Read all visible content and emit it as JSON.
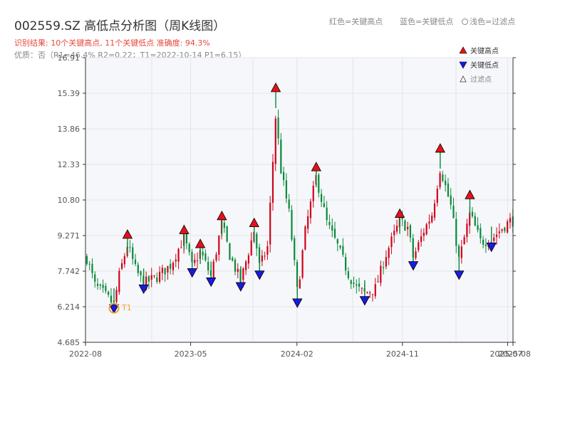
{
  "header": {
    "title": "002559.SZ 高低点分析图（周K线图）",
    "result_line": "识别结果: 10个关键高点, 11个关键低点  准确度: 94.3%",
    "quality_line": "优质：否（R1=46.4%  R2=0.22；T1=2022-10-14 P1=6.15）",
    "legend_high": "红色=关键高点",
    "legend_low": "蓝色=关键低点",
    "legend_filtered": "浅色=过滤点"
  },
  "colors": {
    "up": "#d0021b",
    "down": "#0a8a3a",
    "high_marker": "#e8111b",
    "low_marker": "#1a1ae0",
    "t1_marker": "#f2a12a",
    "plot_bg": "#f5f7fa",
    "grid": "#e2e6ea"
  },
  "chart_data": {
    "type": "candlestick",
    "title": "002559.SZ 高低点分析图（周K线图）",
    "ylim": [
      4.685,
      16.91
    ],
    "y_ticks": [
      "4.685",
      "6.214",
      "7.742",
      "9.271",
      "10.80",
      "12.33",
      "13.86",
      "15.39",
      "16.91"
    ],
    "x_ticks": [
      "2022-08",
      "2023-05",
      "2024-02",
      "2024-11",
      "2025-07",
      "2025-08"
    ],
    "x_range": [
      "2022-08-01",
      "2025-08-15"
    ],
    "grid": true,
    "legend_position": "top-right",
    "legend": {
      "high": "关键高点",
      "low": "关键低点",
      "filtered": "过滤点"
    },
    "key_highs": [
      {
        "date": "2022-11-18",
        "price": 9.3
      },
      {
        "date": "2023-04-14",
        "price": 9.5
      },
      {
        "date": "2023-05-26",
        "price": 8.9
      },
      {
        "date": "2023-07-21",
        "price": 10.1
      },
      {
        "date": "2023-10-13",
        "price": 9.8
      },
      {
        "date": "2023-12-08",
        "price": 15.6
      },
      {
        "date": "2024-03-22",
        "price": 12.2
      },
      {
        "date": "2024-10-25",
        "price": 10.2
      },
      {
        "date": "2025-02-07",
        "price": 13.0
      },
      {
        "date": "2025-04-25",
        "price": 11.0
      }
    ],
    "key_lows": [
      {
        "date": "2022-10-14",
        "price": 6.15
      },
      {
        "date": "2022-12-30",
        "price": 7.0
      },
      {
        "date": "2023-05-05",
        "price": 7.7
      },
      {
        "date": "2023-06-23",
        "price": 7.3
      },
      {
        "date": "2023-09-08",
        "price": 7.1
      },
      {
        "date": "2023-10-27",
        "price": 7.6
      },
      {
        "date": "2024-02-02",
        "price": 6.4
      },
      {
        "date": "2024-07-26",
        "price": 6.5
      },
      {
        "date": "2024-11-29",
        "price": 8.0
      },
      {
        "date": "2025-03-28",
        "price": 7.6
      },
      {
        "date": "2025-06-20",
        "price": 8.8
      }
    ],
    "t1": {
      "label": "T1",
      "date": "2022-10-14",
      "price": 6.15
    },
    "price_path": [
      [
        "2022-08-05",
        8.3
      ],
      [
        "2022-08-26",
        7.1
      ],
      [
        "2022-09-16",
        6.8
      ],
      [
        "2022-10-14",
        6.3
      ],
      [
        "2022-10-28",
        7.6
      ],
      [
        "2022-11-18",
        8.9
      ],
      [
        "2022-12-09",
        7.8
      ],
      [
        "2022-12-30",
        7.2
      ],
      [
        "2023-02-03",
        7.5
      ],
      [
        "2023-03-10",
        8.0
      ],
      [
        "2023-04-14",
        9.2
      ],
      [
        "2023-05-05",
        7.9
      ],
      [
        "2023-05-26",
        8.6
      ],
      [
        "2023-06-23",
        7.5
      ],
      [
        "2023-07-21",
        9.8
      ],
      [
        "2023-08-11",
        8.4
      ],
      [
        "2023-09-08",
        7.3
      ],
      [
        "2023-10-13",
        9.5
      ],
      [
        "2023-10-27",
        7.9
      ],
      [
        "2023-11-17",
        8.8
      ],
      [
        "2023-12-08",
        14.5
      ],
      [
        "2023-12-22",
        12.0
      ],
      [
        "2024-01-12",
        10.2
      ],
      [
        "2024-02-02",
        6.8
      ],
      [
        "2024-02-23",
        9.5
      ],
      [
        "2024-03-22",
        11.8
      ],
      [
        "2024-04-19",
        9.8
      ],
      [
        "2024-05-17",
        8.8
      ],
      [
        "2024-06-14",
        7.6
      ],
      [
        "2024-07-05",
        7.0
      ],
      [
        "2024-07-26",
        6.8
      ],
      [
        "2024-08-23",
        7.0
      ],
      [
        "2024-09-20",
        8.5
      ],
      [
        "2024-10-25",
        9.9
      ],
      [
        "2024-11-15",
        9.6
      ],
      [
        "2024-11-29",
        8.3
      ],
      [
        "2024-12-27",
        9.5
      ],
      [
        "2025-01-17",
        10.2
      ],
      [
        "2025-02-07",
        12.2
      ],
      [
        "2025-03-07",
        10.5
      ],
      [
        "2025-03-28",
        8.2
      ],
      [
        "2025-04-25",
        10.2
      ],
      [
        "2025-05-23",
        9.0
      ],
      [
        "2025-06-20",
        9.1
      ],
      [
        "2025-07-18",
        9.6
      ],
      [
        "2025-08-08",
        9.9
      ]
    ]
  }
}
